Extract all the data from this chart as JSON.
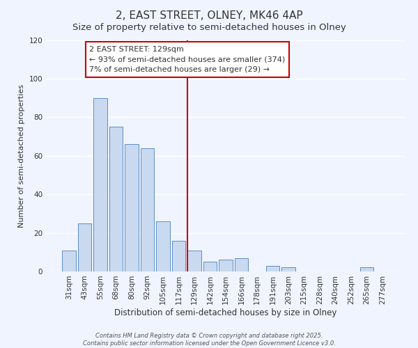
{
  "title": "2, EAST STREET, OLNEY, MK46 4AP",
  "subtitle": "Size of property relative to semi-detached houses in Olney",
  "xlabel": "Distribution of semi-detached houses by size in Olney",
  "ylabel": "Number of semi-detached properties",
  "bar_labels": [
    "31sqm",
    "43sqm",
    "55sqm",
    "68sqm",
    "80sqm",
    "92sqm",
    "105sqm",
    "117sqm",
    "129sqm",
    "142sqm",
    "154sqm",
    "166sqm",
    "178sqm",
    "191sqm",
    "203sqm",
    "215sqm",
    "228sqm",
    "240sqm",
    "252sqm",
    "265sqm",
    "277sqm"
  ],
  "bar_values": [
    11,
    25,
    90,
    75,
    66,
    64,
    26,
    16,
    11,
    5,
    6,
    7,
    0,
    3,
    2,
    0,
    0,
    0,
    0,
    2,
    0
  ],
  "bar_color": "#c9d9f0",
  "bar_edge_color": "#5b8ec4",
  "vline_index": 8,
  "vline_color": "#cc0000",
  "ylim": [
    0,
    120
  ],
  "annotation_title": "2 EAST STREET: 129sqm",
  "annotation_line1": "← 93% of semi-detached houses are smaller (374)",
  "annotation_line2": "7% of semi-detached houses are larger (29) →",
  "annotation_box_color": "#ffffff",
  "annotation_box_edge": "#cc0000",
  "footer1": "Contains HM Land Registry data © Crown copyright and database right 2025.",
  "footer2": "Contains public sector information licensed under the Open Government Licence v3.0.",
  "background_color": "#f0f4ff",
  "grid_color": "#ffffff",
  "title_fontsize": 11,
  "subtitle_fontsize": 9.5,
  "tick_fontsize": 7.5,
  "ylabel_fontsize": 8,
  "xlabel_fontsize": 8.5,
  "annotation_fontsize": 8,
  "footer_fontsize": 6
}
